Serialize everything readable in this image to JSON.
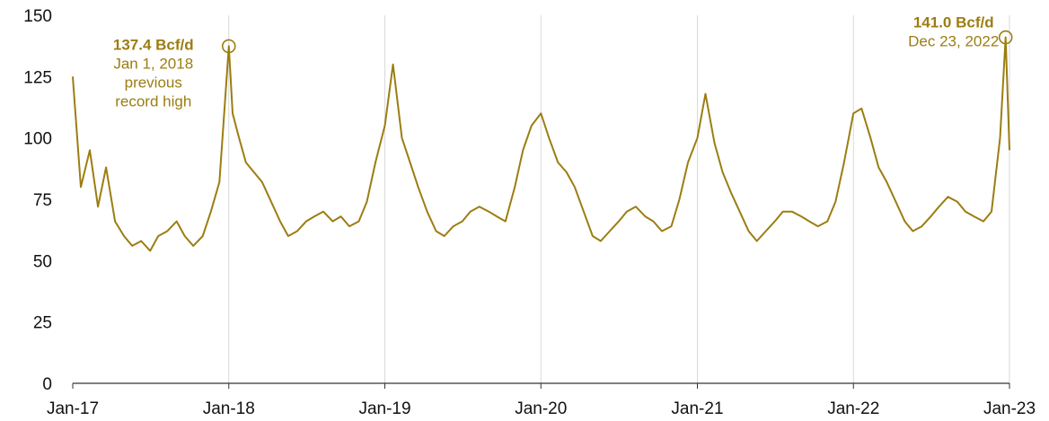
{
  "chart_data": {
    "type": "line",
    "title": "",
    "xlabel": "",
    "ylabel": "",
    "ylim": [
      0,
      150
    ],
    "xlim": [
      "2017-01-01",
      "2023-01-01"
    ],
    "yticks": [
      "0",
      "25",
      "50",
      "75",
      "100",
      "125",
      "150"
    ],
    "xticks": [
      {
        "date": "2017-01-01",
        "label": "Jan-17"
      },
      {
        "date": "2018-01-01",
        "label": "Jan-18"
      },
      {
        "date": "2019-01-01",
        "label": "Jan-19"
      },
      {
        "date": "2020-01-01",
        "label": "Jan-20"
      },
      {
        "date": "2021-01-01",
        "label": "Jan-21"
      },
      {
        "date": "2022-01-01",
        "label": "Jan-22"
      },
      {
        "date": "2023-01-01",
        "label": "Jan-23"
      }
    ],
    "grid": {
      "vertical": true,
      "horizontal": false
    },
    "line_color": "#9c7d12",
    "annotation_color": "#9c7d12",
    "series": [
      {
        "x": [
          "2017-01-01",
          "2017-01-20",
          "2017-02-10",
          "2017-03-01",
          "2017-03-20",
          "2017-04-10",
          "2017-05-01",
          "2017-05-20",
          "2017-06-10",
          "2017-07-01",
          "2017-07-20",
          "2017-08-10",
          "2017-09-01",
          "2017-09-20",
          "2017-10-10",
          "2017-11-01",
          "2017-11-20",
          "2017-12-10",
          "2018-01-01",
          "2018-01-10",
          "2018-01-25",
          "2018-02-10",
          "2018-03-01",
          "2018-03-20",
          "2018-04-10",
          "2018-05-01",
          "2018-05-20",
          "2018-06-10",
          "2018-07-01",
          "2018-07-20",
          "2018-08-10",
          "2018-09-01",
          "2018-09-20",
          "2018-10-10",
          "2018-11-01",
          "2018-11-20",
          "2018-12-10",
          "2019-01-01",
          "2019-01-20",
          "2019-02-10",
          "2019-03-01",
          "2019-03-20",
          "2019-04-10",
          "2019-05-01",
          "2019-05-20",
          "2019-06-10",
          "2019-07-01",
          "2019-07-20",
          "2019-08-10",
          "2019-09-01",
          "2019-09-20",
          "2019-10-10",
          "2019-11-01",
          "2019-11-20",
          "2019-12-10",
          "2020-01-01",
          "2020-01-20",
          "2020-02-10",
          "2020-03-01",
          "2020-03-20",
          "2020-04-10",
          "2020-05-01",
          "2020-05-20",
          "2020-06-10",
          "2020-07-01",
          "2020-07-20",
          "2020-08-10",
          "2020-09-01",
          "2020-09-20",
          "2020-10-10",
          "2020-11-01",
          "2020-11-20",
          "2020-12-10",
          "2021-01-01",
          "2021-01-20",
          "2021-02-10",
          "2021-03-01",
          "2021-03-20",
          "2021-04-10",
          "2021-05-01",
          "2021-05-20",
          "2021-06-10",
          "2021-07-01",
          "2021-07-20",
          "2021-08-10",
          "2021-09-01",
          "2021-09-20",
          "2021-10-10",
          "2021-11-01",
          "2021-11-20",
          "2021-12-10",
          "2022-01-01",
          "2022-01-20",
          "2022-02-10",
          "2022-03-01",
          "2022-03-20",
          "2022-04-10",
          "2022-05-01",
          "2022-05-20",
          "2022-06-10",
          "2022-07-01",
          "2022-07-20",
          "2022-08-10",
          "2022-09-01",
          "2022-09-20",
          "2022-10-10",
          "2022-11-01",
          "2022-11-20",
          "2022-12-10",
          "2022-12-23",
          "2023-01-01"
        ],
        "y": [
          125,
          80,
          95,
          72,
          88,
          66,
          60,
          56,
          58,
          54,
          60,
          62,
          66,
          60,
          56,
          60,
          70,
          82,
          137.4,
          110,
          100,
          90,
          86,
          82,
          74,
          66,
          60,
          62,
          66,
          68,
          70,
          66,
          68,
          64,
          66,
          74,
          90,
          105,
          130,
          100,
          90,
          80,
          70,
          62,
          60,
          64,
          66,
          70,
          72,
          70,
          68,
          66,
          80,
          95,
          105,
          110,
          100,
          90,
          86,
          80,
          70,
          60,
          58,
          62,
          66,
          70,
          72,
          68,
          66,
          62,
          64,
          75,
          90,
          100,
          118,
          98,
          86,
          78,
          70,
          62,
          58,
          62,
          66,
          70,
          70,
          68,
          66,
          64,
          66,
          74,
          90,
          110,
          112,
          100,
          88,
          82,
          74,
          66,
          62,
          64,
          68,
          72,
          76,
          74,
          70,
          68,
          66,
          70,
          100,
          141.0,
          95
        ]
      }
    ],
    "annotations": [
      {
        "date": "2018-01-01",
        "value": 137.4,
        "label": "137.4 Bcf/d",
        "lines": [
          "Jan 1, 2018",
          "previous",
          "record high"
        ]
      },
      {
        "date": "2022-12-23",
        "value": 141.0,
        "label": "141.0 Bcf/d",
        "lines": [
          "Dec 23, 2022"
        ]
      }
    ]
  }
}
